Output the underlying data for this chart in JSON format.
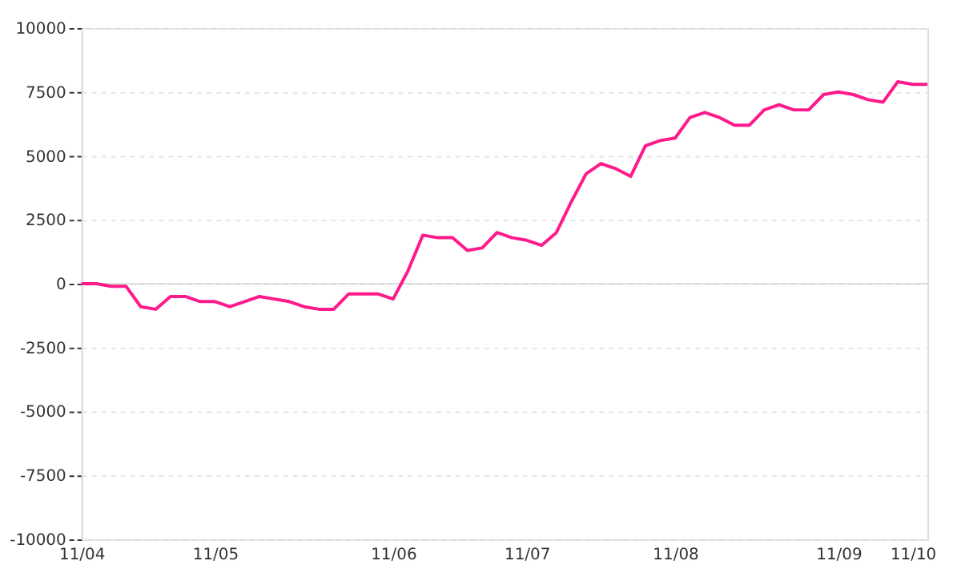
{
  "chart_data": {
    "type": "line",
    "categories": [
      "11/04",
      null,
      null,
      null,
      null,
      null,
      null,
      null,
      null,
      "11/05",
      null,
      null,
      null,
      null,
      null,
      null,
      null,
      null,
      null,
      null,
      null,
      "11/06",
      null,
      null,
      null,
      null,
      null,
      null,
      null,
      null,
      "11/07",
      null,
      null,
      null,
      null,
      null,
      null,
      null,
      null,
      null,
      "11/08",
      null,
      null,
      null,
      null,
      null,
      null,
      null,
      null,
      null,
      null,
      "11/09",
      null,
      null,
      null,
      null,
      "11/10",
      null
    ],
    "series": [
      {
        "color": "#ff1a8c",
        "values": [
          0,
          0,
          -100,
          -100,
          -900,
          -1000,
          -500,
          -500,
          -700,
          -700,
          -900,
          -700,
          -500,
          -600,
          -700,
          -900,
          -1000,
          -1000,
          -400,
          -400,
          -400,
          -600,
          500,
          1900,
          1800,
          1800,
          1300,
          1400,
          2000,
          1800,
          1700,
          1500,
          2000,
          3200,
          4300,
          4700,
          4500,
          4200,
          5400,
          5600,
          5700,
          6500,
          6700,
          6500,
          6200,
          6200,
          6800,
          7000,
          6800,
          6800,
          7400,
          7500,
          7400,
          7200,
          7100,
          7900,
          7800,
          7800
        ]
      }
    ],
    "ylim": [
      -10000,
      10000
    ],
    "yticks": [
      -10000,
      -7500,
      -5000,
      -2500,
      0,
      2500,
      5000,
      7500,
      10000
    ],
    "ref_lines": [
      {
        "axis": "y",
        "value": 0,
        "color": "#dddddd"
      }
    ],
    "grid": "y",
    "marker": "none",
    "line_style": "solid"
  }
}
